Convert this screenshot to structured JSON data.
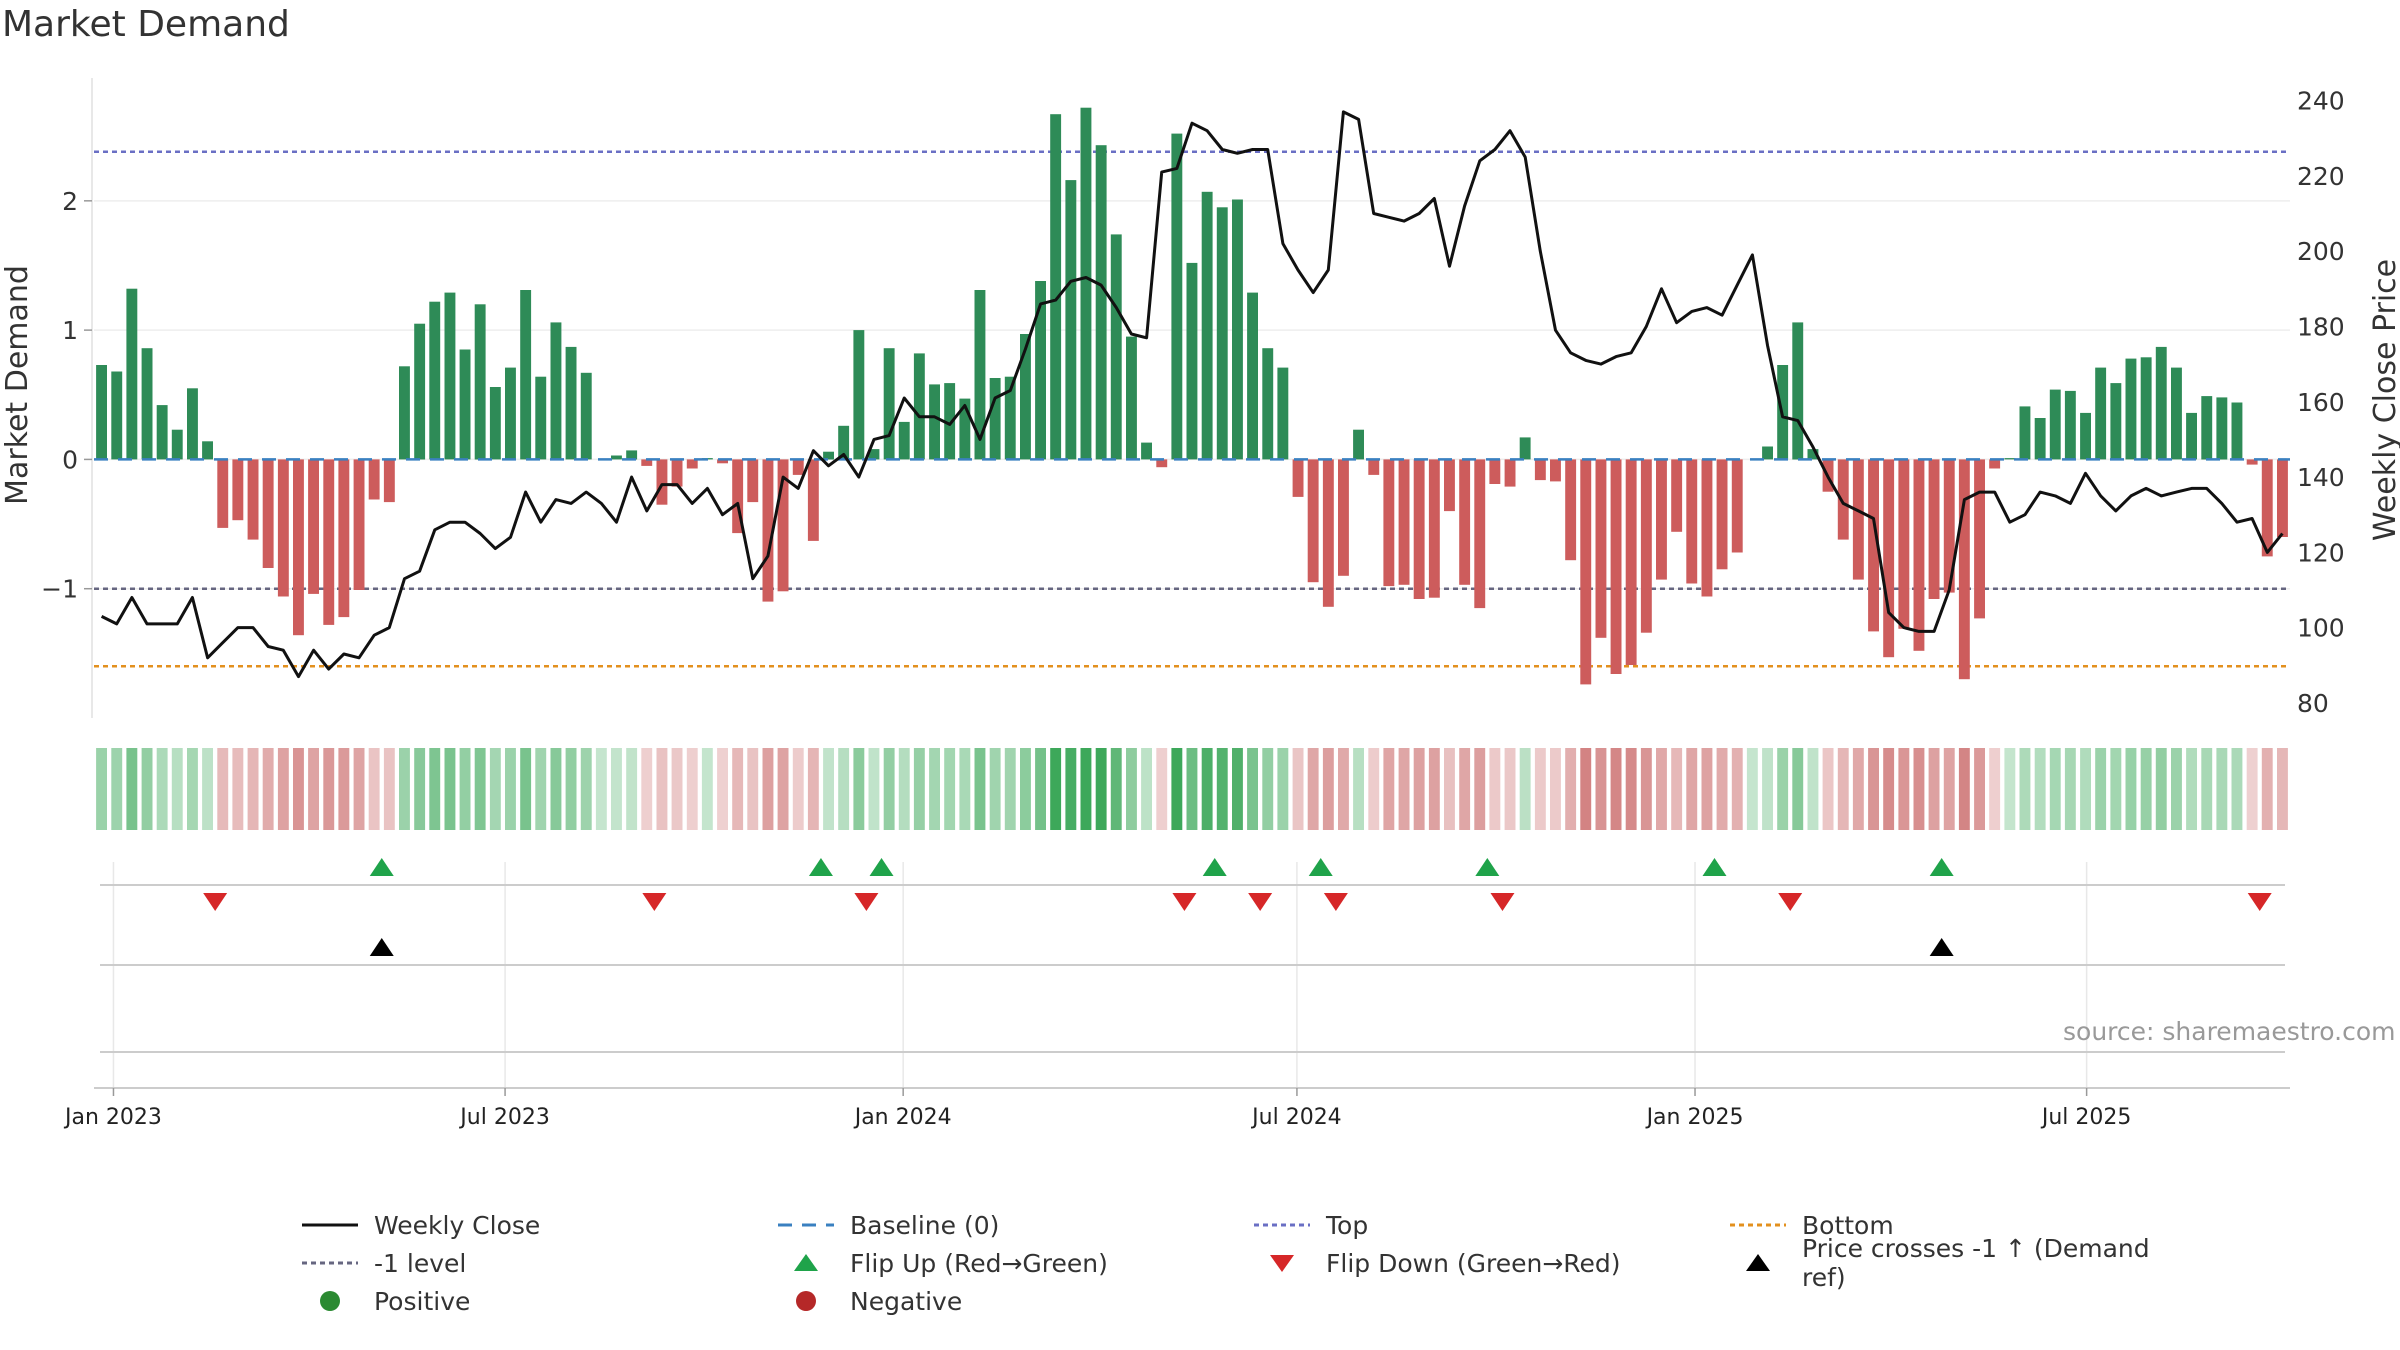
{
  "chart_data": {
    "type": "bar",
    "title": "Market Demand",
    "ylabel_left": "Market Demand",
    "ylabel_right": "Weekly Close Price",
    "source": "source: sharemaestro.com",
    "x_start": "2022-12-23",
    "x_end": "2025-10-03",
    "x_tick_labels": [
      {
        "date": "2023-01-01",
        "label": "Jan 2023"
      },
      {
        "date": "2023-07-01",
        "label": "Jul 2023"
      },
      {
        "date": "2024-01-01",
        "label": "Jan 2024"
      },
      {
        "date": "2024-07-01",
        "label": "Jul 2024"
      },
      {
        "date": "2025-01-01",
        "label": "Jan 2025"
      },
      {
        "date": "2025-07-01",
        "label": "Jul 2025"
      }
    ],
    "ylim_left": [
      -2.0,
      2.95
    ],
    "yticks_left": [
      {
        "value": 2,
        "label": "2"
      },
      {
        "value": 1,
        "label": "1"
      },
      {
        "value": 0,
        "label": "0"
      },
      {
        "value": -1,
        "label": "−1"
      }
    ],
    "ylim_right": [
      76,
      246
    ],
    "yticks_right": [
      {
        "value": 240,
        "label": "240"
      },
      {
        "value": 220,
        "label": "220"
      },
      {
        "value": 200,
        "label": "200"
      },
      {
        "value": 180,
        "label": "180"
      },
      {
        "value": 160,
        "label": "160"
      },
      {
        "value": 140,
        "label": "140"
      },
      {
        "value": 120,
        "label": "120"
      },
      {
        "value": 100,
        "label": "100"
      },
      {
        "value": 80,
        "label": "80"
      }
    ],
    "reference_lines": {
      "top": 2.38,
      "bottom": -1.6,
      "minus_one": -1,
      "baseline": 0
    },
    "demand": [
      0.73,
      0.68,
      1.32,
      0.86,
      0.42,
      0.23,
      0.55,
      0.14,
      -0.53,
      -0.47,
      -0.62,
      -0.84,
      -1.06,
      -1.36,
      -1.04,
      -1.28,
      -1.22,
      -1.01,
      -0.31,
      -0.33,
      0.72,
      1.05,
      1.22,
      1.29,
      0.85,
      1.2,
      0.56,
      0.71,
      1.31,
      0.64,
      1.06,
      0.87,
      0.67,
      0,
      0.03,
      0.07,
      -0.05,
      -0.35,
      -0.21,
      -0.07,
      0.01,
      -0.03,
      -0.57,
      -0.33,
      -1.1,
      -1.02,
      -0.12,
      -0.63,
      0.06,
      0.26,
      1,
      0.08,
      0.86,
      0.29,
      0.82,
      0.58,
      0.59,
      0.47,
      1.31,
      0.63,
      0.64,
      0.97,
      1.38,
      2.67,
      2.16,
      2.72,
      2.43,
      1.74,
      0.95,
      0.13,
      -0.06,
      2.52,
      1.52,
      2.07,
      1.95,
      2.01,
      1.29,
      0.86,
      0.71,
      -0.29,
      -0.95,
      -1.14,
      -0.9,
      0.23,
      -0.12,
      -0.98,
      -0.97,
      -1.08,
      -1.07,
      -0.4,
      -0.97,
      -1.15,
      -0.19,
      -0.21,
      0.17,
      -0.16,
      -0.17,
      -0.78,
      -1.74,
      -1.38,
      -1.66,
      -1.59,
      -1.34,
      -0.93,
      -0.56,
      -0.96,
      -1.06,
      -0.85,
      -0.72,
      0,
      0.1,
      0.73,
      1.06,
      0.08,
      -0.25,
      -0.62,
      -0.93,
      -1.33,
      -1.53,
      -1.31,
      -1.48,
      -1.08,
      -1.03,
      -1.7,
      -1.23,
      -0.07,
      0.01,
      0.41,
      0.32,
      0.54,
      0.53,
      0.36,
      0.71,
      0.59,
      0.78,
      0.79,
      0.87,
      0.71,
      0.36,
      0.49,
      0.48,
      0.44,
      -0.04,
      -0.75,
      -0.6
    ],
    "weekly_close": [
      103,
      101,
      108,
      101,
      101,
      101,
      108,
      92,
      96,
      100,
      100,
      95,
      94,
      87,
      94,
      89,
      93,
      92,
      98,
      100,
      113,
      115,
      126,
      128,
      128,
      125,
      121,
      124,
      136,
      128,
      134,
      133,
      136,
      133,
      128,
      140,
      131,
      138,
      138,
      133,
      137,
      130,
      133,
      113,
      119,
      140,
      137,
      147,
      143,
      146,
      140,
      150,
      151,
      161,
      156,
      156,
      154,
      159,
      150,
      161,
      163,
      174,
      186,
      187,
      192,
      193,
      191,
      185,
      178,
      177,
      221,
      222,
      234,
      232,
      227,
      226,
      227,
      227,
      202,
      195,
      189,
      195,
      237,
      235,
      210,
      209,
      208,
      210,
      214,
      196,
      212,
      224,
      227,
      232,
      225,
      200,
      179,
      173,
      171,
      170,
      172,
      173,
      180,
      190,
      181,
      184,
      185,
      183,
      191,
      199,
      175,
      156,
      155,
      148,
      140,
      133,
      131,
      129,
      104,
      100,
      99,
      99,
      110,
      134,
      136,
      136,
      128,
      130,
      136,
      135,
      133,
      141,
      135,
      131,
      135,
      137,
      135,
      136,
      137,
      137,
      133,
      128,
      129,
      120,
      125
    ],
    "flip_up_dates": [
      "2023-05-05",
      "2023-11-24",
      "2023-12-22",
      "2024-05-24",
      "2024-07-12",
      "2024-09-27",
      "2025-01-10",
      "2025-04-25"
    ],
    "flip_down_dates": [
      "2023-02-17",
      "2023-09-08",
      "2023-12-15",
      "2024-05-10",
      "2024-06-14",
      "2024-07-19",
      "2024-10-04",
      "2025-02-14",
      "2025-09-19"
    ],
    "price_cross_dates": [
      "2023-05-05",
      "2025-04-25"
    ],
    "legend": [
      {
        "key": "weekly_close",
        "label": "Weekly Close",
        "color": "#111111"
      },
      {
        "key": "baseline",
        "label": "Baseline (0)",
        "color": "#3a80c0"
      },
      {
        "key": "top",
        "label": "Top",
        "color": "#6a6fc4"
      },
      {
        "key": "bottom",
        "label": "Bottom",
        "color": "#e3901e"
      },
      {
        "key": "minus_one",
        "label": "-1 level",
        "color": "#666680"
      },
      {
        "key": "flip_up",
        "label": "Flip Up (Red→Green)",
        "color": "#1fa34a"
      },
      {
        "key": "flip_down",
        "label": "Flip Down (Green→Red)",
        "color": "#d62728"
      },
      {
        "key": "price_cross",
        "label": "Price crosses -1 ↑ (Demand ref)",
        "color": "#000000"
      },
      {
        "key": "positive",
        "label": "Positive",
        "color": "#2b8a32"
      },
      {
        "key": "negative",
        "label": "Negative",
        "color": "#b52828"
      }
    ],
    "colors": {
      "bar_positive": "#2e8b57",
      "bar_negative": "#cd5c5c"
    }
  }
}
